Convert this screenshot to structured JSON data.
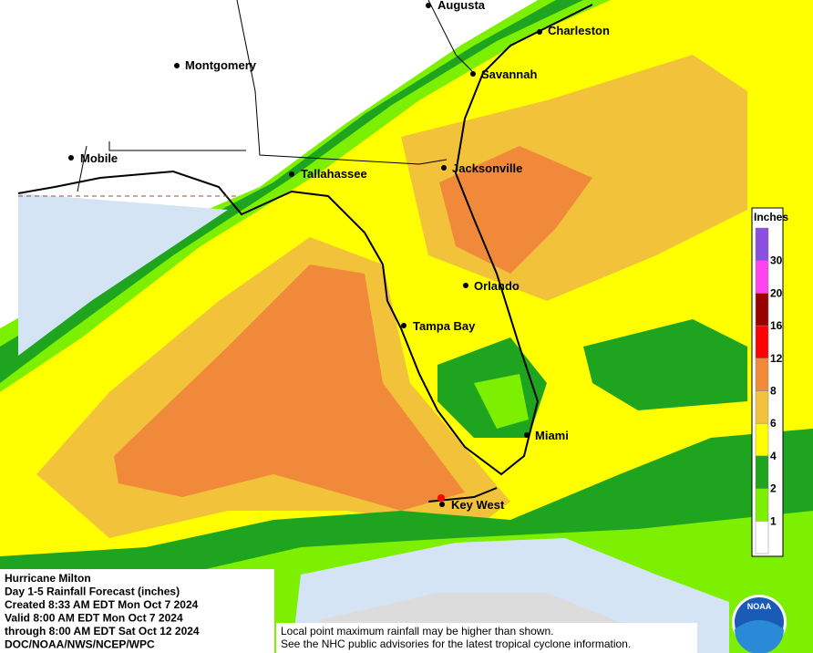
{
  "cities": [
    "Augusta",
    "Charleston",
    "Montgomery",
    "Savannah",
    "Mobile",
    "Tallahassee",
    "Jacksonville",
    "Orlando",
    "Tampa Bay",
    "Miami",
    "Key West"
  ],
  "legend": {
    "title": "Inches",
    "colors": [
      "#ffffff",
      "#7cf000",
      "#1fa41f",
      "#ffff00",
      "#f2c23a",
      "#f08a3a",
      "#ff0000",
      "#990000",
      "#ff44ee",
      "#8b4fe0"
    ],
    "labels": [
      "1",
      "2",
      "4",
      "6",
      "8",
      "12",
      "16",
      "20",
      "30"
    ]
  },
  "info": [
    "Hurricane Milton",
    "Day 1-5 Rainfall Forecast (inches)",
    "Created 8:33 AM EDT Mon Oct 7 2024",
    "Valid 8:00 AM EDT Mon Oct 7 2024",
    "through 8:00 AM EDT Sat Oct 12 2024",
    "DOC/NOAA/NWS/NCEP/WPC"
  ],
  "disclaimer": [
    "Local point maximum rainfall may be higher than shown.",
    "See the NHC public advisories for the latest tropical cyclone information."
  ],
  "logo": "NOAA"
}
